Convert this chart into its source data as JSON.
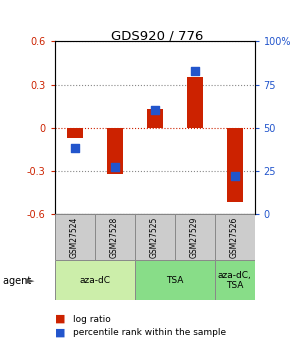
{
  "title": "GDS920 / 776",
  "samples": [
    "GSM27524",
    "GSM27528",
    "GSM27525",
    "GSM27529",
    "GSM27526"
  ],
  "log_ratios": [
    -0.07,
    -0.32,
    0.13,
    0.35,
    -0.52
  ],
  "percentile_ranks": [
    38,
    27,
    60,
    83,
    22
  ],
  "bar_color": "#cc2200",
  "dot_color": "#2255cc",
  "ylim": [
    -0.6,
    0.6
  ],
  "yticks_left": [
    -0.6,
    -0.3,
    0.0,
    0.3,
    0.6
  ],
  "ytick_left_labels": [
    "-0.6",
    "-0.3",
    "0",
    "0.3",
    "0.6"
  ],
  "yticks_right": [
    0,
    25,
    50,
    75,
    100
  ],
  "ytick_right_labels": [
    "0",
    "25",
    "50",
    "75",
    "100%"
  ],
  "background_color": "#ffffff",
  "bar_width": 0.4,
  "dot_size": 30,
  "agent_groups": [
    {
      "label": "aza-dC",
      "start": 0,
      "end": 2,
      "color": "#cceeaa"
    },
    {
      "label": "TSA",
      "start": 2,
      "end": 4,
      "color": "#88dd88"
    },
    {
      "label": "aza-dC,\nTSA",
      "start": 4,
      "end": 5,
      "color": "#88dd88"
    }
  ]
}
